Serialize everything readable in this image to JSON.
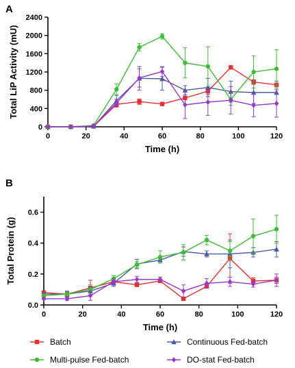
{
  "chart_data": [
    {
      "type": "line",
      "panel_label": "A",
      "xlabel": "Time (h)",
      "ylabel": "Total LiP Activity (mU)",
      "xlim": [
        0,
        120
      ],
      "ylim": [
        0,
        2400
      ],
      "xticks": [
        0,
        20,
        40,
        60,
        80,
        100,
        120
      ],
      "yticks": [
        0,
        400,
        800,
        1200,
        1600,
        2000,
        2400
      ],
      "grid": false,
      "series": [
        {
          "name": "Batch",
          "color": "#e8302f",
          "marker": "square",
          "x": [
            0,
            12,
            24,
            36,
            48,
            60,
            72,
            84,
            96,
            108,
            120
          ],
          "y": [
            0,
            0,
            10,
            490,
            550,
            500,
            630,
            780,
            1300,
            980,
            920
          ],
          "err": [
            0,
            0,
            5,
            60,
            60,
            25,
            40,
            70,
            20,
            50,
            40
          ]
        },
        {
          "name": "Continuous Fed-batch",
          "color": "#4a59a7",
          "marker": "triangle",
          "x": [
            0,
            12,
            24,
            36,
            48,
            60,
            72,
            84,
            96,
            108,
            120
          ],
          "y": [
            0,
            0,
            10,
            570,
            1060,
            1050,
            800,
            860,
            770,
            750,
            750
          ],
          "err": [
            0,
            0,
            5,
            120,
            260,
            250,
            100,
            200,
            230,
            240,
            250
          ]
        },
        {
          "name": "Multi-pulse Fed-batch",
          "color": "#3ebc35",
          "marker": "circle",
          "x": [
            0,
            12,
            24,
            36,
            48,
            60,
            72,
            84,
            96,
            108,
            120
          ],
          "y": [
            0,
            0,
            30,
            820,
            1740,
            1980,
            1400,
            1320,
            600,
            1200,
            1270
          ],
          "err": [
            0,
            0,
            10,
            120,
            80,
            60,
            330,
            430,
            130,
            350,
            420
          ]
        },
        {
          "name": "DO-stat Fed-batch",
          "color": "#9838c8",
          "marker": "diamond",
          "x": [
            0,
            12,
            24,
            36,
            48,
            60,
            72,
            84,
            96,
            108,
            120
          ],
          "y": [
            0,
            0,
            15,
            520,
            1070,
            1210,
            480,
            540,
            580,
            470,
            510
          ],
          "err": [
            0,
            0,
            10,
            80,
            200,
            110,
            300,
            290,
            300,
            250,
            300
          ]
        }
      ]
    },
    {
      "type": "line",
      "panel_label": "B",
      "xlabel": "Time (h)",
      "ylabel": "Total Protein (g)",
      "xlim": [
        0,
        120
      ],
      "ylim": [
        0,
        0.7
      ],
      "xticks": [
        0,
        20,
        40,
        60,
        80,
        100,
        120
      ],
      "yticks": [
        0.0,
        0.2,
        0.4,
        0.6
      ],
      "ytick_labels": [
        "0.0",
        "0.2",
        "0.4",
        "0.6"
      ],
      "grid": false,
      "legend_position": "bottom",
      "series": [
        {
          "name": "Batch",
          "color": "#e8302f",
          "marker": "square",
          "x": [
            0,
            12,
            24,
            36,
            48,
            60,
            72,
            84,
            96,
            108,
            120
          ],
          "y": [
            0.08,
            0.07,
            0.11,
            0.15,
            0.13,
            0.155,
            0.04,
            0.12,
            0.3,
            0.155,
            0.16
          ],
          "err": [
            0.01,
            0.015,
            0.05,
            0.02,
            0.01,
            0.01,
            0.005,
            0.01,
            0.16,
            0.02,
            0.02
          ]
        },
        {
          "name": "Continuous Fed-batch",
          "color": "#4a59a7",
          "marker": "triangle",
          "x": [
            0,
            12,
            24,
            36,
            48,
            60,
            72,
            84,
            96,
            108,
            120
          ],
          "y": [
            0.07,
            0.07,
            0.09,
            0.14,
            0.265,
            0.29,
            0.345,
            0.33,
            0.33,
            0.34,
            0.36
          ],
          "err": [
            0.01,
            0.02,
            0.03,
            0.02,
            0.03,
            0.01,
            0.03,
            0.02,
            0.09,
            0.03,
            0.05
          ]
        },
        {
          "name": "Multi-pulse Fed-batch",
          "color": "#3ebc35",
          "marker": "circle",
          "x": [
            0,
            12,
            24,
            36,
            48,
            60,
            72,
            84,
            96,
            108,
            120
          ],
          "y": [
            0.06,
            0.07,
            0.1,
            0.17,
            0.26,
            0.31,
            0.34,
            0.42,
            0.35,
            0.445,
            0.49
          ],
          "err": [
            0.01,
            0.01,
            0.03,
            0.02,
            0.02,
            0.04,
            0.05,
            0.03,
            0.06,
            0.11,
            0.09
          ]
        },
        {
          "name": "DO-stat Fed-batch",
          "color": "#9838c8",
          "marker": "diamond",
          "x": [
            0,
            12,
            24,
            36,
            48,
            60,
            72,
            84,
            96,
            108,
            120
          ],
          "y": [
            0.04,
            0.04,
            0.06,
            0.15,
            0.165,
            0.165,
            0.09,
            0.14,
            0.15,
            0.135,
            0.16
          ],
          "err": [
            0.005,
            0.01,
            0.03,
            0.02,
            0.02,
            0.015,
            0.04,
            0.03,
            0.03,
            0.02,
            0.04
          ]
        }
      ]
    }
  ],
  "legend": [
    {
      "label": "Batch",
      "color": "#e8302f",
      "marker": "square"
    },
    {
      "label": "Continuous Fed-batch",
      "color": "#4a59a7",
      "marker": "triangle"
    },
    {
      "label": "Multi-pulse Fed-batch",
      "color": "#3ebc35",
      "marker": "circle"
    },
    {
      "label": "DO-stat Fed-batch",
      "color": "#9838c8",
      "marker": "diamond"
    }
  ]
}
